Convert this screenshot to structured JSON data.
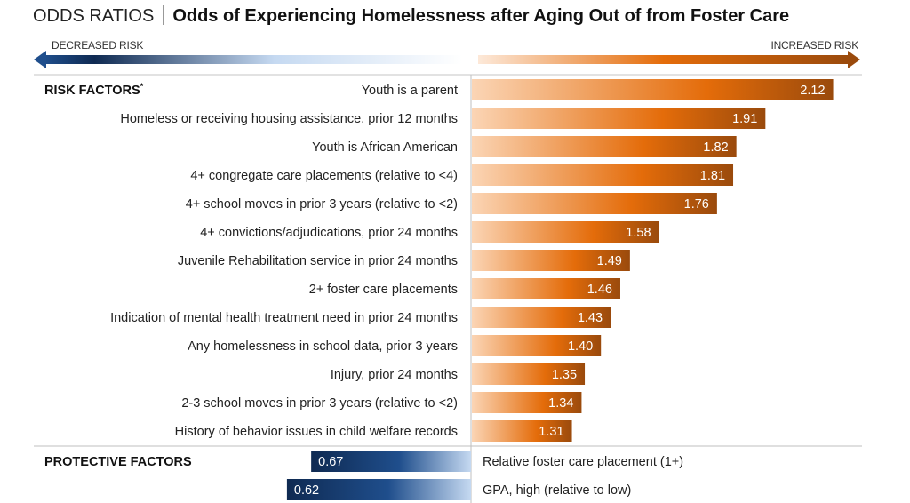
{
  "header": {
    "prefix": "ODDS RATIOS",
    "title": "Odds of Experiencing Homelessness after Aging Out of from Foster Care"
  },
  "axis": {
    "decreased_label": "DECREASED RISK",
    "increased_label": "INCREASED RISK"
  },
  "colors": {
    "risk_dark": "#9a4a0c",
    "risk_mid": "#e46c0a",
    "risk_light": "#fbd5b5",
    "protective_dark": "#0f2a52",
    "protective_mid": "#1f4e8c",
    "protective_light": "#c5d9f1"
  },
  "chart_data": {
    "type": "bar",
    "orientation": "horizontal",
    "title": "Odds of Experiencing Homelessness after Aging Out of from Foster Care",
    "xlabel": "Odds ratio",
    "baseline": 1.0,
    "groups": [
      {
        "name": "RISK FACTORS",
        "footnote_marker": "*",
        "direction": "increased",
        "categories": [
          "Youth is a parent",
          "Homeless or receiving housing assistance, prior 12 months",
          "Youth is African American",
          "4+ congregate care placements (relative to <4)",
          "4+ school moves in prior 3 years (relative to <2)",
          "4+ convictions/adjudications, prior 24 months",
          "Juvenile Rehabilitation service in prior 24 months",
          "2+ foster care placements",
          "Indication of mental health treatment need in prior 24 months",
          "Any homelessness in school data, prior 3 years",
          "Injury, prior 24 months",
          "2-3 school moves in prior 3 years (relative to <2)",
          "History of behavior issues in child welfare records"
        ],
        "values": [
          2.12,
          1.91,
          1.82,
          1.81,
          1.76,
          1.58,
          1.49,
          1.46,
          1.43,
          1.4,
          1.35,
          1.34,
          1.31
        ],
        "labels": [
          "2.12",
          "1.91",
          "1.82",
          "1.81",
          "1.76",
          "1.58",
          "1.49",
          "1.46",
          "1.43",
          "1.40",
          "1.35",
          "1.34",
          "1.31"
        ]
      },
      {
        "name": "PROTECTIVE FACTORS",
        "direction": "decreased",
        "categories": [
          "Relative foster care placement (1+)",
          "GPA, high (relative to low)"
        ],
        "values": [
          0.67,
          0.62
        ],
        "labels": [
          "0.67",
          "0.62"
        ]
      }
    ]
  }
}
